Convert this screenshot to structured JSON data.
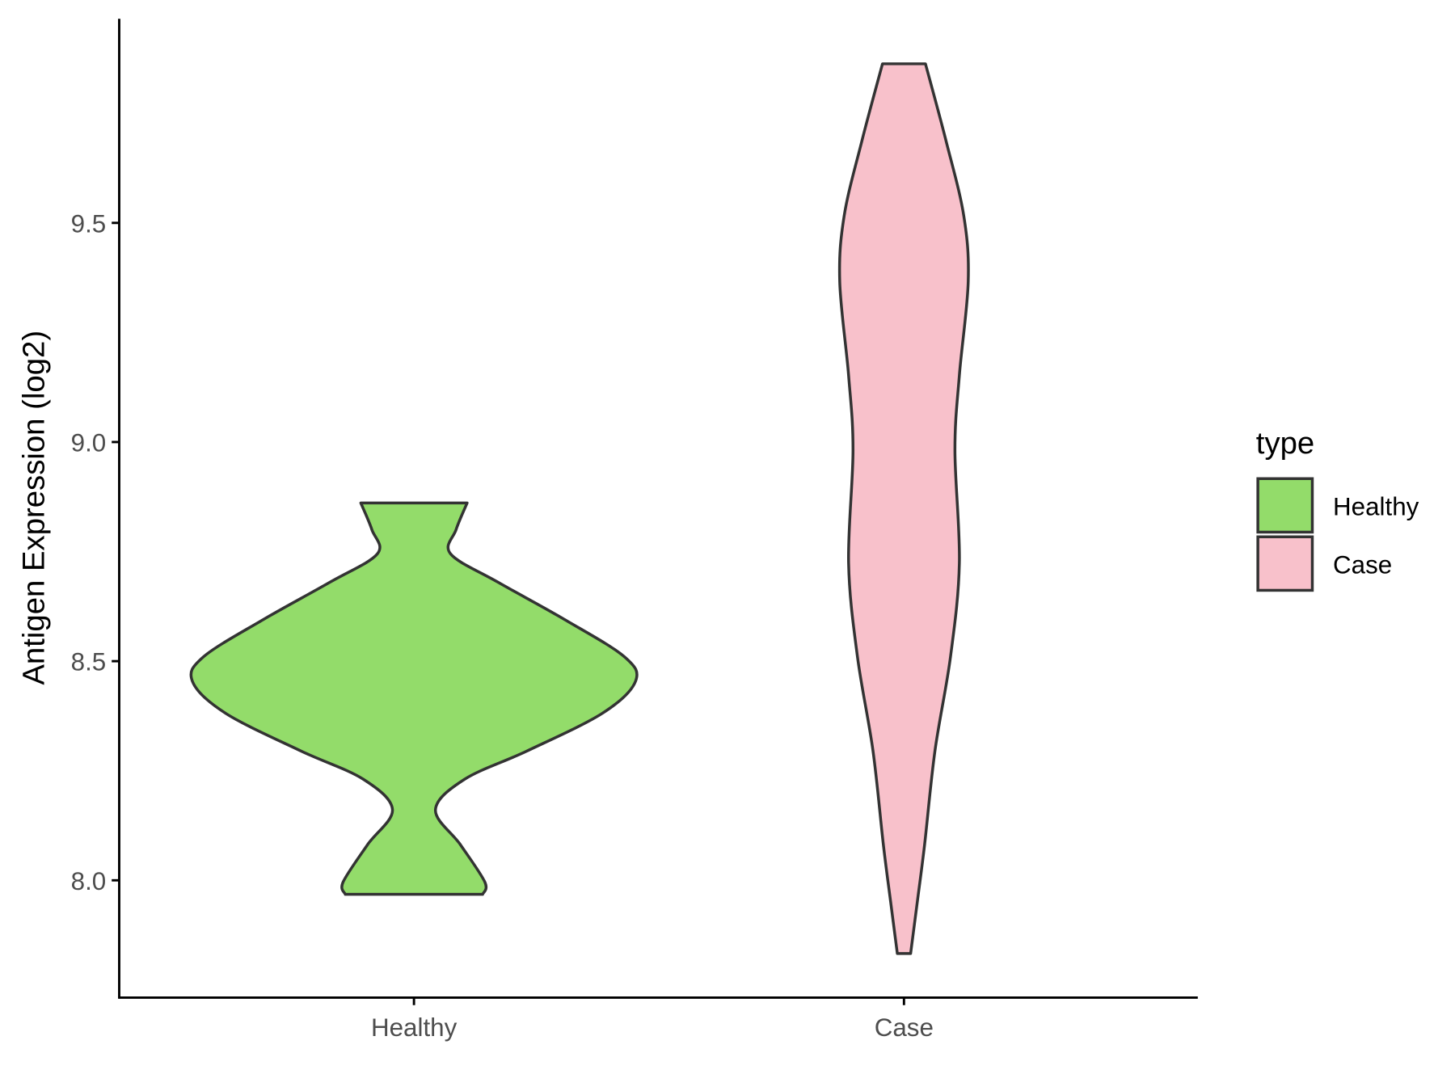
{
  "chart_data": {
    "type": "violin",
    "title": "",
    "xlabel": "",
    "ylabel": "Antigen Expression (log2)",
    "ylim": [
      7.732,
      9.966
    ],
    "yticks": [
      8.0,
      8.5,
      9.0,
      9.5
    ],
    "ytick_labels": [
      "8.0",
      "8.5",
      "9.0",
      "9.5"
    ],
    "categories": [
      "Healthy",
      "Case"
    ],
    "grid": false,
    "legend": {
      "title": "type",
      "placement": "right",
      "entries": [
        "Healthy",
        "Case"
      ]
    },
    "series": [
      {
        "name": "Healthy",
        "color": "#93DC6A",
        "outline": "#333333",
        "min": 7.968,
        "max": 8.861,
        "density_profile": [
          [
            7.968,
            0.31
          ],
          [
            7.996,
            0.32
          ],
          [
            8.081,
            0.21
          ],
          [
            8.161,
            0.097
          ],
          [
            8.231,
            0.23
          ],
          [
            8.295,
            0.51
          ],
          [
            8.381,
            0.85
          ],
          [
            8.454,
            1.0
          ],
          [
            8.51,
            0.95
          ],
          [
            8.595,
            0.68
          ],
          [
            8.68,
            0.38
          ],
          [
            8.745,
            0.165
          ],
          [
            8.8,
            0.19
          ],
          [
            8.861,
            0.24
          ]
        ]
      },
      {
        "name": "Case",
        "color": "#F8C1CB",
        "outline": "#333333",
        "min": 7.833,
        "max": 9.863,
        "density_profile": [
          [
            7.833,
            0.03
          ],
          [
            7.95,
            0.06
          ],
          [
            8.081,
            0.093
          ],
          [
            8.296,
            0.14
          ],
          [
            8.51,
            0.21
          ],
          [
            8.724,
            0.25
          ],
          [
            8.981,
            0.23
          ],
          [
            9.152,
            0.25
          ],
          [
            9.366,
            0.29
          ],
          [
            9.516,
            0.27
          ],
          [
            9.687,
            0.19
          ],
          [
            9.863,
            0.097
          ]
        ]
      }
    ]
  }
}
